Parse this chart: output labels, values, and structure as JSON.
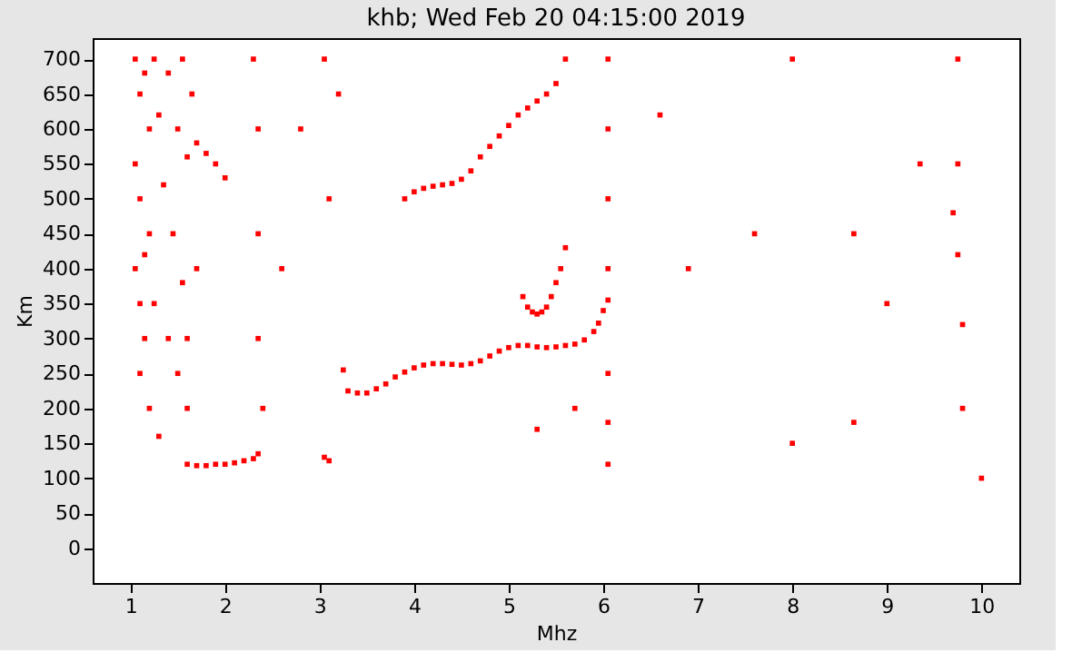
{
  "chart_data": {
    "type": "scatter",
    "title": "khb; Wed Feb 20 04:15:00 2019",
    "xlabel": "Mhz",
    "ylabel": "Km",
    "xlim": [
      0.6,
      10.4
    ],
    "ylim": [
      -50,
      730
    ],
    "xticks": [
      1,
      2,
      3,
      4,
      5,
      6,
      7,
      8,
      9,
      10
    ],
    "yticks": [
      0,
      50,
      100,
      150,
      200,
      250,
      300,
      350,
      400,
      450,
      500,
      550,
      600,
      650,
      700
    ],
    "grid": false,
    "marker": "square",
    "series": [
      {
        "color": "#ff0000",
        "x": [
          3.25,
          3.3,
          3.4,
          3.5,
          3.6,
          3.7,
          3.8,
          3.9,
          4.0,
          4.1,
          4.2,
          4.3,
          4.4,
          4.5,
          4.6,
          4.7,
          4.8,
          4.9,
          5.0,
          5.1,
          5.2,
          5.3,
          5.4,
          5.5,
          5.6,
          5.7,
          5.8,
          5.9,
          5.95,
          6.0,
          6.05
        ],
        "values": [
          255,
          225,
          222,
          222,
          228,
          235,
          245,
          252,
          258,
          262,
          264,
          264,
          263,
          262,
          264,
          268,
          275,
          282,
          287,
          290,
          290,
          288,
          287,
          288,
          290,
          292,
          298,
          310,
          322,
          340,
          355
        ]
      },
      {
        "color": "#ff0000",
        "x": [
          3.9,
          4.0,
          4.1,
          4.2,
          4.3,
          4.4,
          4.5,
          4.6,
          4.7,
          4.8,
          4.9,
          5.0,
          5.1,
          5.2,
          5.3,
          5.4,
          5.5,
          5.6
        ],
        "values": [
          500,
          510,
          515,
          518,
          520,
          522,
          528,
          540,
          560,
          575,
          590,
          605,
          620,
          630,
          640,
          650,
          665,
          700
        ]
      },
      {
        "color": "#ff0000",
        "x": [
          5.15,
          5.2,
          5.25,
          5.3,
          5.35,
          5.4,
          5.45,
          5.5,
          5.55,
          5.6
        ],
        "values": [
          360,
          345,
          338,
          335,
          338,
          345,
          360,
          380,
          400,
          430
        ]
      },
      {
        "color": "#ff0000",
        "x": [
          1.6,
          1.7,
          1.8,
          1.9,
          2.0,
          2.1,
          2.2,
          2.3,
          2.35,
          3.05,
          3.1,
          1.7,
          1.8,
          1.9,
          2.0
        ],
        "values": [
          120,
          118,
          118,
          120,
          120,
          122,
          125,
          128,
          135,
          130,
          125,
          580,
          565,
          550,
          530
        ]
      },
      {
        "color": "#ff0000",
        "x": [
          1.05,
          1.05,
          1.05,
          1.1,
          1.1,
          1.1,
          1.1,
          1.15,
          1.15,
          1.15,
          1.2,
          1.2,
          1.2,
          1.25,
          1.25,
          1.3,
          1.3,
          1.35,
          1.4,
          1.4,
          1.45,
          1.5,
          1.5,
          1.55,
          1.55,
          1.6,
          1.6,
          1.6,
          1.65,
          1.7,
          2.3,
          2.35,
          2.35,
          2.35,
          2.4,
          6.05,
          6.05,
          6.05,
          6.05,
          6.05,
          6.05,
          6.05,
          9.75,
          9.75,
          9.75,
          9.8,
          9.8,
          9.7,
          8.0,
          8.0,
          8.65,
          8.65,
          9.0,
          9.35,
          6.6,
          6.9,
          7.6,
          10.0,
          5.3,
          5.7,
          3.05,
          3.1,
          3.2,
          2.6,
          2.8
        ],
        "values": [
          700,
          550,
          400,
          650,
          500,
          350,
          250,
          680,
          420,
          300,
          600,
          450,
          200,
          700,
          350,
          620,
          160,
          520,
          680,
          300,
          450,
          600,
          250,
          700,
          380,
          300,
          200,
          560,
          650,
          400,
          700,
          600,
          450,
          300,
          200,
          700,
          600,
          500,
          400,
          250,
          180,
          120,
          700,
          550,
          420,
          320,
          200,
          480,
          700,
          150,
          450,
          180,
          350,
          550,
          620,
          400,
          450,
          100,
          170,
          200,
          700,
          500,
          650,
          400,
          600
        ]
      }
    ]
  }
}
